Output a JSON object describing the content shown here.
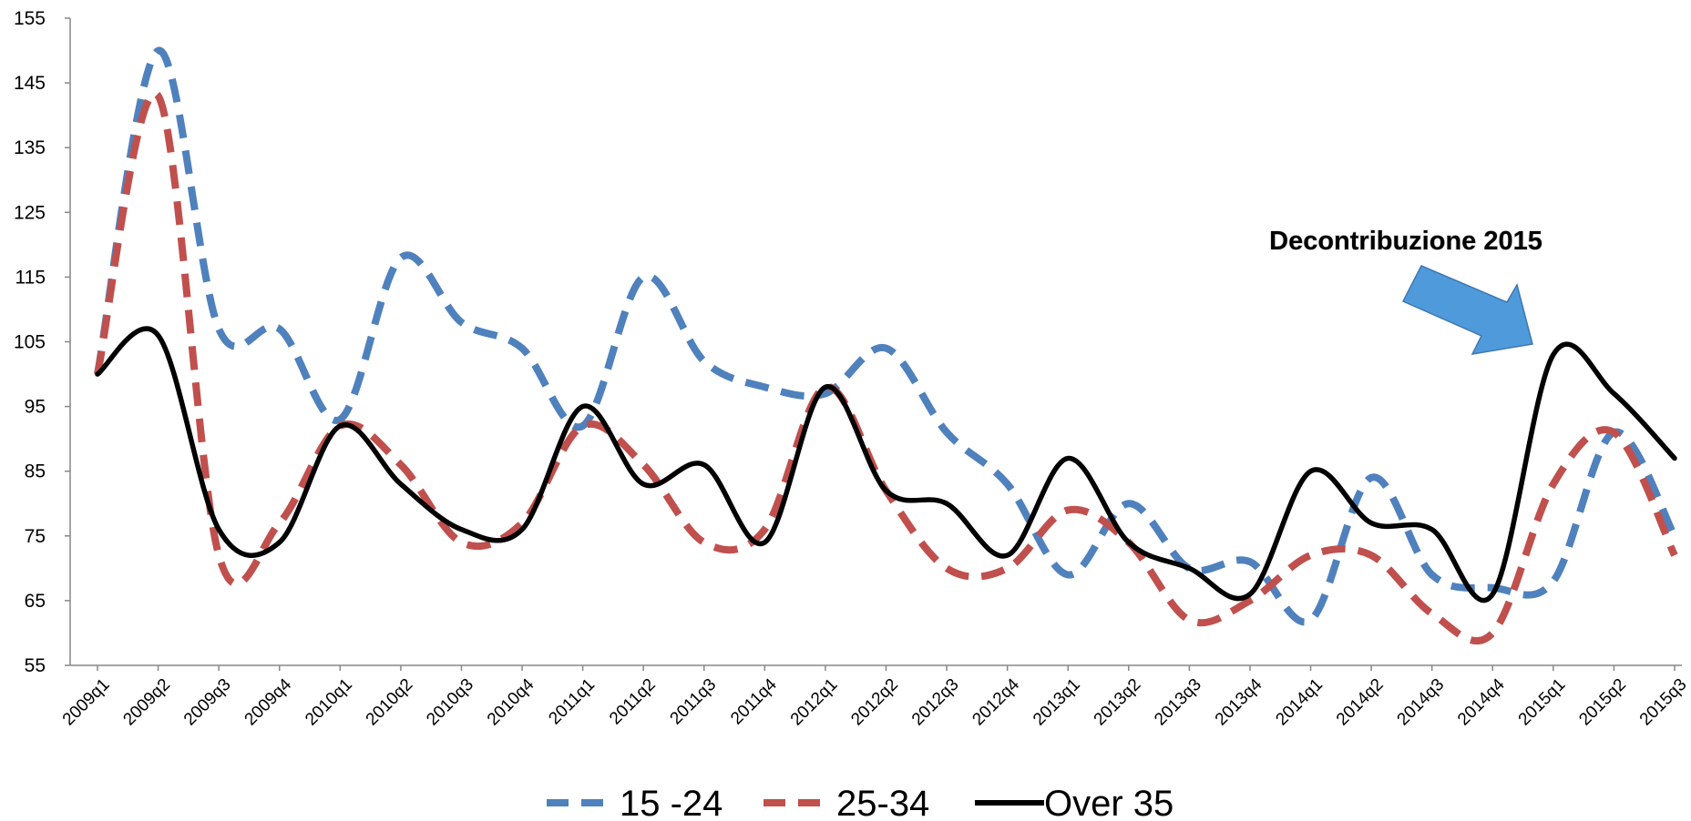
{
  "chart_data": {
    "type": "line",
    "title": "",
    "xlabel": "",
    "ylabel": "",
    "ylim": [
      55,
      155
    ],
    "yticks": [
      55,
      65,
      75,
      85,
      95,
      105,
      115,
      125,
      135,
      145,
      155
    ],
    "grid": false,
    "legend_position": "bottom",
    "categories": [
      "2009q1",
      "2009q2",
      "2009q3",
      "2009q4",
      "2010q1",
      "2010q2",
      "2010q3",
      "2010q4",
      "2011q1",
      "2011q2",
      "2011q3",
      "2011q4",
      "2012q1",
      "2012q2",
      "2012q3",
      "2012q4",
      "2013q1",
      "2013q2",
      "2013q3",
      "2013q4",
      "2014q1",
      "2014q2",
      "2014q3",
      "2014q4",
      "2015q1",
      "2015q2",
      "2015q3"
    ],
    "series": [
      {
        "name": "15 -24",
        "color": "#4F81BD",
        "style": "dashed",
        "values": [
          100,
          150,
          107,
          107,
          93,
          118,
          108,
          104,
          92,
          115,
          102,
          98,
          97,
          104,
          91,
          83,
          69,
          80,
          70,
          71,
          62,
          84,
          69,
          67,
          68,
          91,
          75
        ]
      },
      {
        "name": "25-34",
        "color": "#C0504D",
        "style": "dashed",
        "values": [
          100,
          143,
          72,
          77,
          92,
          86,
          74,
          77,
          92,
          86,
          74,
          76,
          98,
          82,
          70,
          70,
          79,
          74,
          62,
          65,
          72,
          72,
          63,
          60,
          83,
          91,
          72
        ]
      },
      {
        "name": "Over 35",
        "color": "#000000",
        "style": "solid",
        "values": [
          100,
          106,
          76,
          74,
          92,
          83,
          76,
          76,
          95,
          83,
          86,
          74,
          98,
          82,
          80,
          72,
          87,
          74,
          70,
          66,
          85,
          77,
          76,
          66,
          103,
          97,
          87
        ]
      }
    ],
    "annotations": [
      {
        "text": "Decontribuzione 2015",
        "arrow_color": "#4F9ADB",
        "arrow_stroke": "#3F78B0"
      }
    ]
  }
}
